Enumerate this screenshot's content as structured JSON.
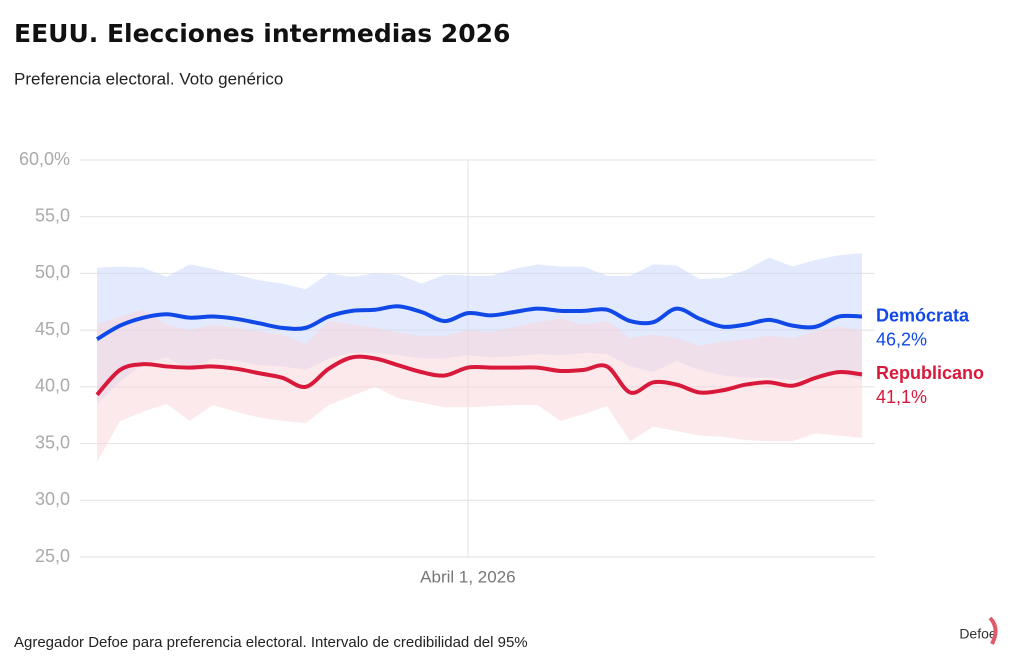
{
  "chart_data": {
    "type": "line",
    "title": "EEUU. Elecciones intermedias 2026",
    "subtitle": "Preferencia electoral. Voto genérico",
    "source": "Agregador Defoe para preferencia electoral. Intervalo de credibilidad del 95%",
    "logo": "Defoe",
    "categories": [
      null,
      null,
      null,
      null,
      null,
      null,
      null,
      null,
      null,
      null,
      null,
      null,
      null,
      null,
      null,
      null,
      "Abril 1, 2026",
      null,
      null,
      null,
      null,
      null,
      null,
      null,
      null,
      null,
      null,
      null,
      null,
      null,
      null,
      null,
      null,
      null
    ],
    "ylim": [
      25,
      60
    ],
    "yticks": [
      {
        "value": 25,
        "label": "25,0"
      },
      {
        "value": 30,
        "label": "30,0"
      },
      {
        "value": 35,
        "label": "35,0"
      },
      {
        "value": 40,
        "label": "40,0"
      },
      {
        "value": 45,
        "label": "45,0"
      },
      {
        "value": 50,
        "label": "50,0"
      },
      {
        "value": 55,
        "label": "55,0"
      },
      {
        "value": 60,
        "label": "60,0%"
      }
    ],
    "grid": true,
    "series": [
      {
        "name": "Demócrata",
        "color": "#1149e8",
        "band_color": "#c9d5fb",
        "values": [
          44.2,
          45.4,
          46.1,
          46.4,
          46.1,
          46.2,
          46.0,
          45.6,
          45.2,
          45.2,
          46.2,
          46.7,
          46.8,
          47.1,
          46.6,
          45.8,
          46.5,
          46.3,
          46.6,
          46.9,
          46.7,
          46.7,
          46.8,
          45.8,
          45.7,
          46.9,
          46.0,
          45.3,
          45.5,
          45.9,
          45.4,
          45.3,
          46.2,
          46.2
        ],
        "value_labels": [
          null,
          null,
          null,
          null,
          null,
          null,
          null,
          null,
          null,
          null,
          null,
          null,
          null,
          null,
          null,
          null,
          null,
          null,
          null,
          null,
          null,
          null,
          null,
          null,
          null,
          null,
          null,
          null,
          null,
          null,
          null,
          null,
          null,
          "46,2%"
        ],
        "upper": [
          50.5,
          50.6,
          50.5,
          49.7,
          50.8,
          50.4,
          49.9,
          49.4,
          49.1,
          48.6,
          50.0,
          49.7,
          50.0,
          49.9,
          49.1,
          49.9,
          49.8,
          49.8,
          50.4,
          50.8,
          50.6,
          50.6,
          49.8,
          49.8,
          50.8,
          50.7,
          49.5,
          49.6,
          50.3,
          51.4,
          50.6,
          51.2,
          51.6,
          51.8
        ],
        "lower": [
          38.5,
          40.5,
          42.0,
          42.6,
          41.5,
          42.5,
          42.3,
          41.9,
          41.8,
          41.5,
          42.5,
          43.0,
          43.0,
          42.8,
          42.5,
          42.5,
          42.8,
          42.6,
          42.7,
          42.9,
          42.8,
          43.0,
          42.9,
          41.8,
          41.3,
          42.3,
          41.5,
          41.0,
          40.8,
          40.8,
          40.6,
          40.9,
          41.3,
          40.5
        ]
      },
      {
        "name": "Republicano",
        "color": "#d8193b",
        "band_color": "#f9d3d8",
        "values": [
          39.3,
          41.5,
          42.0,
          41.8,
          41.7,
          41.8,
          41.6,
          41.2,
          40.8,
          40.0,
          41.6,
          42.6,
          42.5,
          41.9,
          41.3,
          41.0,
          41.7,
          41.7,
          41.7,
          41.7,
          41.4,
          41.5,
          41.8,
          39.5,
          40.4,
          40.2,
          39.5,
          39.7,
          40.2,
          40.4,
          40.1,
          40.8,
          41.3,
          41.1
        ],
        "value_labels": [
          null,
          null,
          null,
          null,
          null,
          null,
          null,
          null,
          null,
          null,
          null,
          null,
          null,
          null,
          null,
          null,
          null,
          null,
          null,
          null,
          null,
          null,
          null,
          null,
          null,
          null,
          null,
          null,
          null,
          null,
          null,
          null,
          null,
          "41,1%"
        ],
        "upper": [
          45.5,
          46.2,
          46.8,
          45.5,
          45.0,
          45.5,
          45.2,
          44.9,
          44.6,
          43.8,
          45.8,
          45.5,
          45.2,
          44.8,
          44.5,
          44.5,
          45.0,
          44.8,
          45.3,
          45.7,
          46.0,
          45.5,
          45.8,
          44.3,
          44.6,
          44.3,
          43.6,
          44.0,
          44.2,
          44.5,
          44.3,
          44.9,
          45.3,
          45.0
        ],
        "lower": [
          33.4,
          37.0,
          37.8,
          38.5,
          37.0,
          38.4,
          37.8,
          37.3,
          37.0,
          36.8,
          38.4,
          39.2,
          40.0,
          39.0,
          38.6,
          38.2,
          38.2,
          38.3,
          38.4,
          38.4,
          37.0,
          37.6,
          38.3,
          35.2,
          36.5,
          36.1,
          35.7,
          35.6,
          35.3,
          35.2,
          35.2,
          35.9,
          35.7,
          35.5
        ]
      }
    ]
  }
}
